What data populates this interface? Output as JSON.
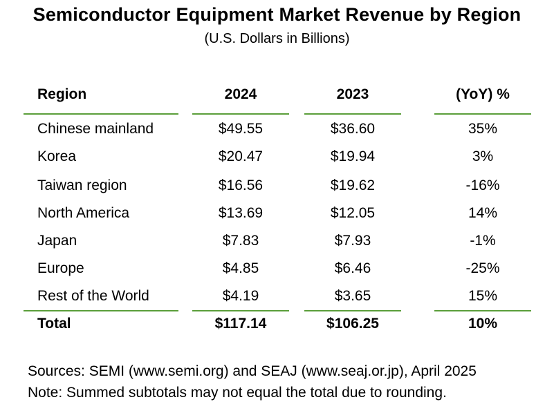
{
  "title": "Semiconductor Equipment Market Revenue by Region",
  "subtitle": "(U.S. Dollars in Billions)",
  "table": {
    "headers": [
      "Region",
      "2024",
      "2023",
      "(YoY) %"
    ],
    "rows": [
      [
        "Chinese mainland",
        "$49.55",
        "$36.60",
        "35%"
      ],
      [
        "Korea",
        "$20.47",
        "$19.94",
        "3%"
      ],
      [
        "Taiwan region",
        "$16.56",
        "$19.62",
        "-16%"
      ],
      [
        "North America",
        "$13.69",
        "$12.05",
        "14%"
      ],
      [
        "Japan",
        "$7.83",
        "$7.93",
        "-1%"
      ],
      [
        "Europe",
        "$4.85",
        "$6.46",
        "-25%"
      ],
      [
        "Rest of the World",
        "$4.19",
        "$3.65",
        "15%"
      ]
    ],
    "total": [
      "Total",
      "$117.14",
      "$106.25",
      "10%"
    ]
  },
  "sources": "Sources: SEMI (www.semi.org) and SEAJ (www.seaj.or.jp), April 2025",
  "note": "Note: Summed subtotals may not equal the total due to rounding.",
  "colors": {
    "rule": "#5a9e3a",
    "text": "#000000",
    "background": "#ffffff"
  }
}
